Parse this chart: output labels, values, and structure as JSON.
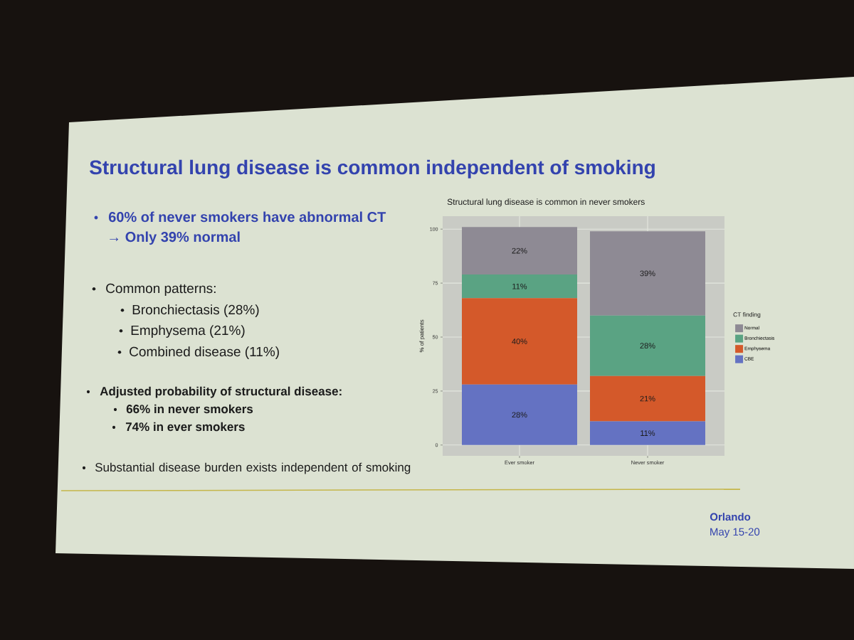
{
  "chart_data": {
    "type": "bar",
    "title": "Structural lung disease is common independent of smoking",
    "subtitle": "Structural lung disease is common in never smokers",
    "ylabel": "% of patients",
    "legend_title": "CT finding",
    "categories": [
      "Ever smoker",
      "Never smoker"
    ],
    "stacked": true,
    "series": [
      {
        "name": "CBE",
        "color": "#6472c2",
        "values": [
          28,
          11
        ],
        "value_labels": [
          "28%",
          "11%"
        ]
      },
      {
        "name": "Emphysema",
        "color": "#d4592a",
        "values": [
          40,
          21
        ],
        "value_labels": [
          "40%",
          "21%"
        ]
      },
      {
        "name": "Bronchiectasis",
        "color": "#5aa383",
        "values": [
          11,
          28
        ],
        "value_labels": [
          "11%",
          "28%"
        ]
      },
      {
        "name": "Normal",
        "color": "#8e8a94",
        "values": [
          22,
          39
        ],
        "value_labels": [
          "22%",
          "39%"
        ]
      }
    ],
    "ylim": [
      -5,
      106
    ],
    "yticks": [
      0,
      25,
      50,
      75,
      100
    ],
    "grid": true,
    "legend": "right",
    "annotations": [
      "60% of never smokers have abnormal CT",
      "→ Only 39% normal",
      "Common patterns:",
      "Bronchiectasis (28%)",
      "Emphysema (21%)",
      "Combined disease (11%)",
      "Adjusted probability of structural disease:",
      "66% in never smokers",
      "74% in ever smokers",
      "Substantial disease burden exists independent of smoking",
      "Orlando",
      "May 15-20"
    ]
  }
}
